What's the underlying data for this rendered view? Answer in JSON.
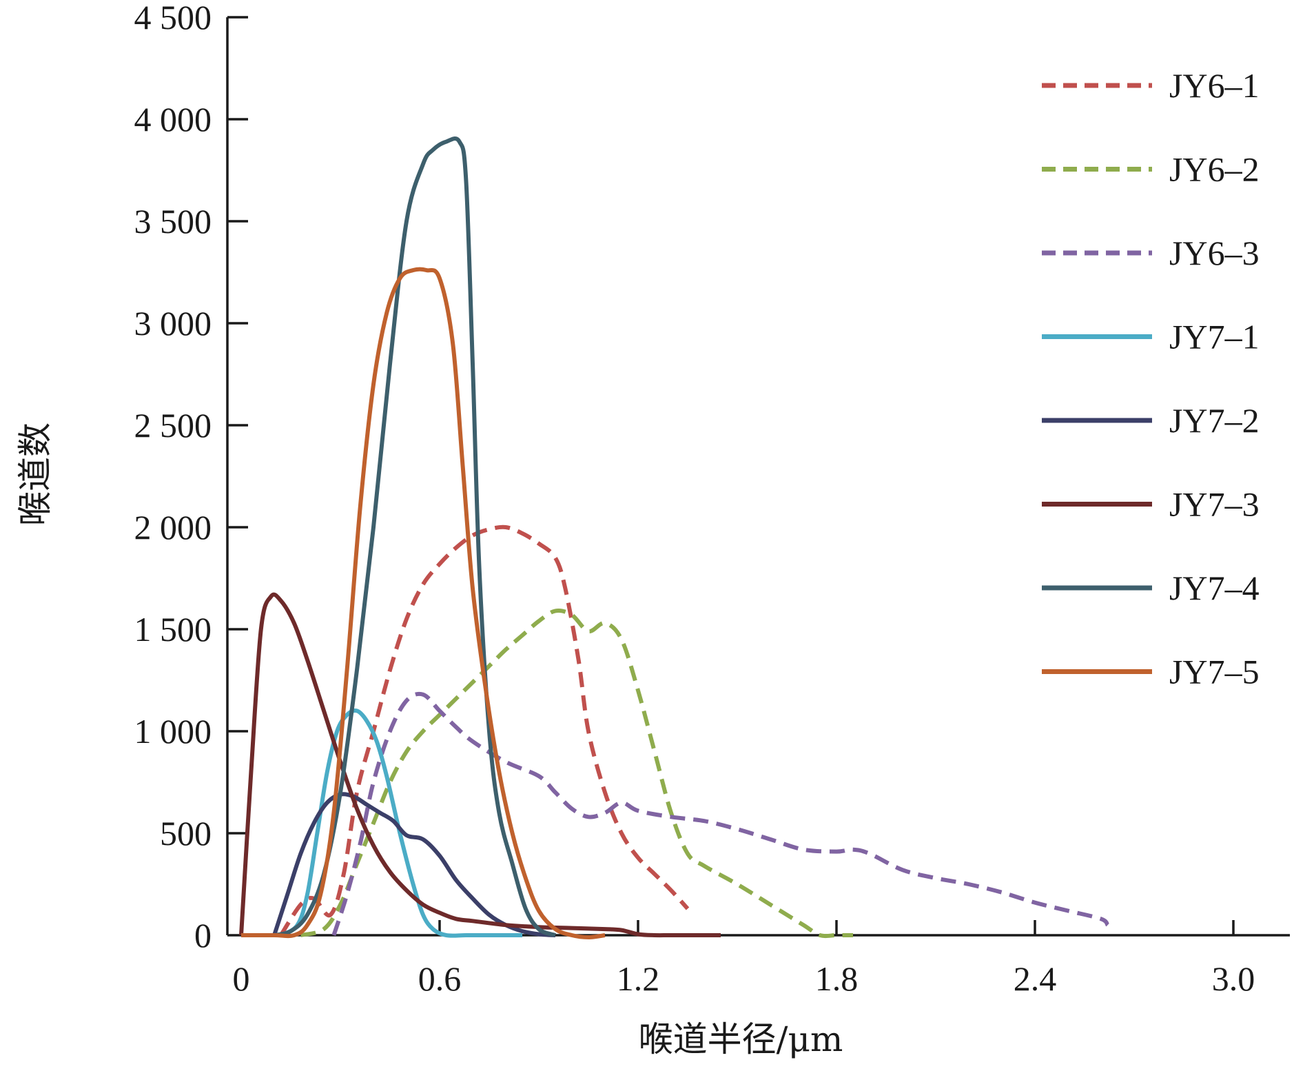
{
  "chart_data": {
    "type": "line",
    "title": "",
    "xlabel": "喉道半径/μm",
    "ylabel": "喉道数",
    "xlim": [
      0,
      3.0
    ],
    "ylim": [
      0,
      4500
    ],
    "x_ticks": [
      "0",
      "0.6",
      "1.2",
      "1.8",
      "2.4",
      "3.0"
    ],
    "y_ticks": [
      "0",
      "500",
      "1 000",
      "1 500",
      "2 000",
      "2 500",
      "3 000",
      "3 500",
      "4 000",
      "4 500"
    ],
    "grid": false,
    "legend_position": "top-right",
    "series": [
      {
        "name": "JY6–1",
        "color": "#c0504d",
        "dashed": true,
        "x": [
          0.12,
          0.18,
          0.22,
          0.27,
          0.31,
          0.35,
          0.4,
          0.45,
          0.5,
          0.55,
          0.6,
          0.65,
          0.7,
          0.75,
          0.8,
          0.85,
          0.9,
          0.95,
          0.98,
          1.02,
          1.05,
          1.1,
          1.15,
          1.2,
          1.25,
          1.3,
          1.35
        ],
        "y": [
          0,
          150,
          180,
          100,
          300,
          700,
          1000,
          1300,
          1550,
          1720,
          1820,
          1900,
          1960,
          1990,
          2000,
          1970,
          1920,
          1850,
          1700,
          1350,
          1000,
          700,
          500,
          380,
          300,
          220,
          130
        ]
      },
      {
        "name": "JY6–2",
        "color": "#8fac4d",
        "dashed": true,
        "x": [
          0.18,
          0.25,
          0.3,
          0.35,
          0.4,
          0.45,
          0.5,
          0.55,
          0.6,
          0.65,
          0.7,
          0.75,
          0.8,
          0.85,
          0.9,
          0.95,
          1.0,
          1.05,
          1.1,
          1.15,
          1.2,
          1.25,
          1.3,
          1.35,
          1.4,
          1.5,
          1.6,
          1.7,
          1.75,
          1.8,
          1.85
        ],
        "y": [
          0,
          30,
          150,
          350,
          550,
          750,
          900,
          1000,
          1080,
          1160,
          1240,
          1320,
          1400,
          1470,
          1540,
          1590,
          1570,
          1490,
          1530,
          1450,
          1200,
          900,
          600,
          400,
          340,
          250,
          150,
          50,
          0,
          0,
          0
        ]
      },
      {
        "name": "JY6–3",
        "color": "#8064a2",
        "dashed": true,
        "x": [
          0.28,
          0.32,
          0.36,
          0.4,
          0.45,
          0.5,
          0.55,
          0.6,
          0.65,
          0.7,
          0.8,
          0.9,
          0.95,
          1.0,
          1.05,
          1.1,
          1.15,
          1.2,
          1.3,
          1.4,
          1.5,
          1.6,
          1.7,
          1.8,
          1.85,
          1.9,
          2.0,
          2.1,
          2.2,
          2.3,
          2.4,
          2.5,
          2.6,
          2.62
        ],
        "y": [
          0,
          200,
          450,
          750,
          1000,
          1150,
          1180,
          1100,
          1020,
          950,
          850,
          780,
          700,
          620,
          580,
          600,
          650,
          610,
          580,
          560,
          520,
          470,
          420,
          410,
          420,
          400,
          320,
          280,
          250,
          210,
          160,
          120,
          80,
          50
        ]
      },
      {
        "name": "JY7–1",
        "color": "#4bacc6",
        "dashed": false,
        "x": [
          0.12,
          0.17,
          0.2,
          0.23,
          0.26,
          0.29,
          0.32,
          0.35,
          0.38,
          0.41,
          0.44,
          0.48,
          0.52,
          0.55,
          0.58,
          0.62,
          0.68,
          0.75,
          0.85
        ],
        "y": [
          0,
          50,
          200,
          500,
          800,
          1000,
          1080,
          1100,
          1050,
          950,
          780,
          500,
          250,
          100,
          30,
          0,
          0,
          0,
          0
        ]
      },
      {
        "name": "JY7–2",
        "color": "#3b3f68",
        "dashed": false,
        "x": [
          0.1,
          0.14,
          0.18,
          0.22,
          0.26,
          0.3,
          0.34,
          0.38,
          0.42,
          0.46,
          0.5,
          0.55,
          0.6,
          0.65,
          0.7,
          0.75,
          0.8,
          0.85,
          0.9,
          0.95
        ],
        "y": [
          0,
          200,
          400,
          550,
          650,
          690,
          680,
          640,
          600,
          560,
          490,
          470,
          390,
          270,
          180,
          100,
          50,
          20,
          5,
          0
        ]
      },
      {
        "name": "JY7–3",
        "color": "#6e2a2a",
        "dashed": false,
        "x": [
          0,
          0.03,
          0.06,
          0.09,
          0.12,
          0.16,
          0.2,
          0.25,
          0.3,
          0.35,
          0.4,
          0.45,
          0.5,
          0.55,
          0.6,
          0.65,
          0.7,
          0.8,
          0.9,
          1.0,
          1.1,
          1.15,
          1.2,
          1.25,
          1.3,
          1.4,
          1.45
        ],
        "y": [
          0,
          800,
          1500,
          1660,
          1640,
          1530,
          1350,
          1100,
          850,
          620,
          440,
          310,
          220,
          150,
          110,
          80,
          70,
          50,
          40,
          35,
          30,
          25,
          5,
          0,
          0,
          0,
          0
        ]
      },
      {
        "name": "JY7–4",
        "color": "#3d5f6c",
        "dashed": false,
        "x": [
          0.1,
          0.15,
          0.2,
          0.25,
          0.3,
          0.35,
          0.4,
          0.45,
          0.5,
          0.55,
          0.58,
          0.62,
          0.66,
          0.68,
          0.7,
          0.72,
          0.75,
          0.78,
          0.82,
          0.86,
          0.9,
          0.95
        ],
        "y": [
          0,
          20,
          100,
          300,
          700,
          1300,
          2000,
          2800,
          3500,
          3780,
          3850,
          3890,
          3890,
          3700,
          2800,
          1800,
          1000,
          600,
          350,
          130,
          30,
          0
        ]
      },
      {
        "name": "JY7–5",
        "color": "#c0612d",
        "dashed": false,
        "x": [
          0,
          0.1,
          0.16,
          0.2,
          0.24,
          0.28,
          0.32,
          0.36,
          0.4,
          0.44,
          0.48,
          0.52,
          0.56,
          0.6,
          0.64,
          0.67,
          0.7,
          0.74,
          0.78,
          0.82,
          0.86,
          0.9,
          0.95,
          1.0,
          1.05,
          1.1
        ],
        "y": [
          0,
          0,
          0,
          50,
          200,
          600,
          1300,
          2100,
          2700,
          3050,
          3220,
          3260,
          3260,
          3220,
          2900,
          2300,
          1700,
          1200,
          800,
          500,
          280,
          120,
          30,
          0,
          -10,
          0
        ]
      }
    ]
  }
}
